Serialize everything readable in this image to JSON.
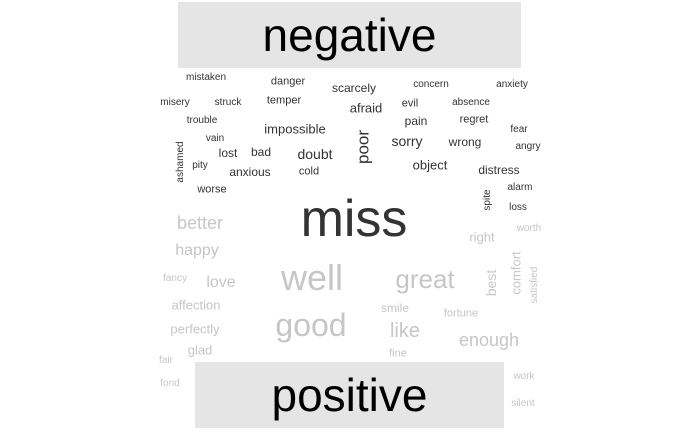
{
  "headers": {
    "negative": "negative",
    "positive": "positive"
  },
  "colors": {
    "negative": "#333333",
    "positive": "#c6c6c6",
    "header_bg": "#e5e5e5",
    "header_text": "#000000"
  },
  "words": [
    {
      "text": "miss",
      "group": "negative",
      "size": 52
    },
    {
      "text": "poor",
      "group": "negative",
      "size": 17,
      "vertical": true
    },
    {
      "text": "doubt",
      "group": "negative",
      "size": 14
    },
    {
      "text": "sorry",
      "group": "negative",
      "size": 14
    },
    {
      "text": "impossible",
      "group": "negative",
      "size": 13
    },
    {
      "text": "afraid",
      "group": "negative",
      "size": 13
    },
    {
      "text": "object",
      "group": "negative",
      "size": 13
    },
    {
      "text": "scarcely",
      "group": "negative",
      "size": 12
    },
    {
      "text": "distress",
      "group": "negative",
      "size": 12
    },
    {
      "text": "wrong",
      "group": "negative",
      "size": 12
    },
    {
      "text": "lost",
      "group": "negative",
      "size": 12
    },
    {
      "text": "anxious",
      "group": "negative",
      "size": 12
    },
    {
      "text": "bad",
      "group": "negative",
      "size": 12
    },
    {
      "text": "pain",
      "group": "negative",
      "size": 12
    },
    {
      "text": "worse",
      "group": "negative",
      "size": 11
    },
    {
      "text": "temper",
      "group": "negative",
      "size": 11
    },
    {
      "text": "danger",
      "group": "negative",
      "size": 11
    },
    {
      "text": "evil",
      "group": "negative",
      "size": 11
    },
    {
      "text": "regret",
      "group": "negative",
      "size": 11
    },
    {
      "text": "cold",
      "group": "negative",
      "size": 11
    },
    {
      "text": "ashamed",
      "group": "negative",
      "size": 10,
      "vertical": true
    },
    {
      "text": "spite",
      "group": "negative",
      "size": 10,
      "vertical": true
    },
    {
      "text": "mistaken",
      "group": "negative",
      "size": 10
    },
    {
      "text": "concern",
      "group": "negative",
      "size": 10
    },
    {
      "text": "anxiety",
      "group": "negative",
      "size": 10
    },
    {
      "text": "misery",
      "group": "negative",
      "size": 10
    },
    {
      "text": "struck",
      "group": "negative",
      "size": 10
    },
    {
      "text": "absence",
      "group": "negative",
      "size": 10
    },
    {
      "text": "trouble",
      "group": "negative",
      "size": 10
    },
    {
      "text": "fear",
      "group": "negative",
      "size": 10
    },
    {
      "text": "vain",
      "group": "negative",
      "size": 10
    },
    {
      "text": "angry",
      "group": "negative",
      "size": 10
    },
    {
      "text": "pity",
      "group": "negative",
      "size": 10
    },
    {
      "text": "alarm",
      "group": "negative",
      "size": 10
    },
    {
      "text": "loss",
      "group": "negative",
      "size": 10
    },
    {
      "text": "well",
      "group": "positive",
      "size": 36
    },
    {
      "text": "good",
      "group": "positive",
      "size": 32
    },
    {
      "text": "great",
      "group": "positive",
      "size": 26
    },
    {
      "text": "better",
      "group": "positive",
      "size": 18
    },
    {
      "text": "happy",
      "group": "positive",
      "size": 16
    },
    {
      "text": "love",
      "group": "positive",
      "size": 16
    },
    {
      "text": "like",
      "group": "positive",
      "size": 20
    },
    {
      "text": "enough",
      "group": "positive",
      "size": 18
    },
    {
      "text": "best",
      "group": "positive",
      "size": 14,
      "vertical": true
    },
    {
      "text": "comfort",
      "group": "positive",
      "size": 13,
      "vertical": true
    },
    {
      "text": "right",
      "group": "positive",
      "size": 13
    },
    {
      "text": "affection",
      "group": "positive",
      "size": 13
    },
    {
      "text": "perfectly",
      "group": "positive",
      "size": 13
    },
    {
      "text": "glad",
      "group": "positive",
      "size": 13
    },
    {
      "text": "smile",
      "group": "positive",
      "size": 12
    },
    {
      "text": "fortune",
      "group": "positive",
      "size": 11
    },
    {
      "text": "satisfied",
      "group": "positive",
      "size": 10,
      "vertical": true
    },
    {
      "text": "worth",
      "group": "positive",
      "size": 10
    },
    {
      "text": "fancy",
      "group": "positive",
      "size": 10
    },
    {
      "text": "fine",
      "group": "positive",
      "size": 11
    },
    {
      "text": "fair",
      "group": "positive",
      "size": 10
    },
    {
      "text": "fond",
      "group": "positive",
      "size": 10
    },
    {
      "text": "work",
      "group": "positive",
      "size": 10
    },
    {
      "text": "silent",
      "group": "positive",
      "size": 10
    }
  ]
}
